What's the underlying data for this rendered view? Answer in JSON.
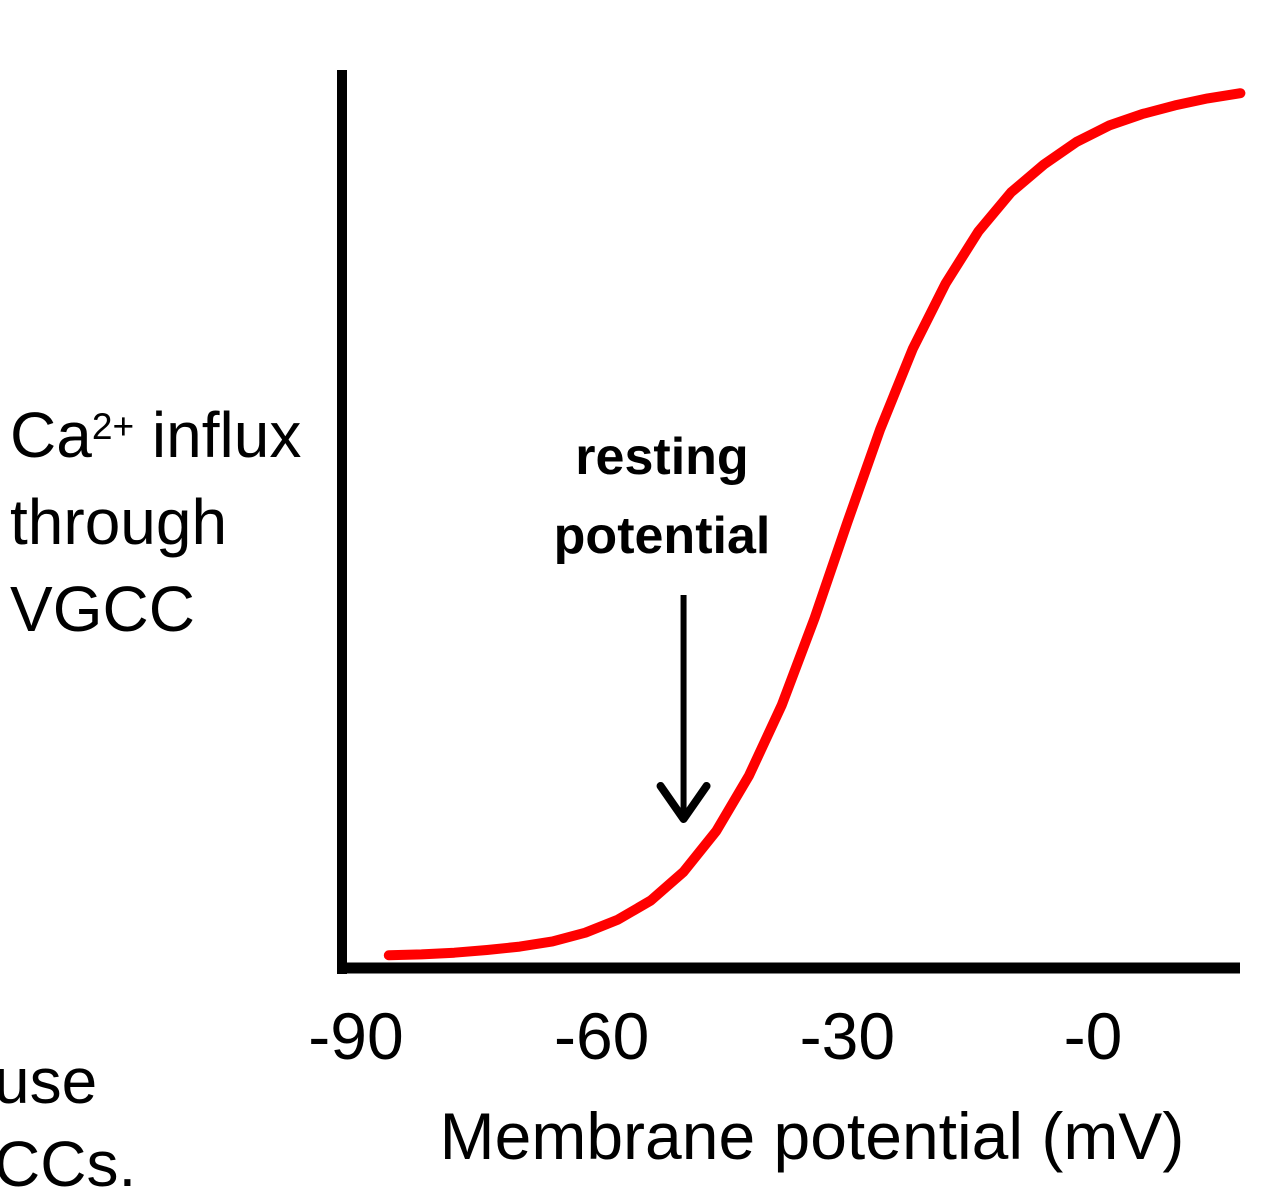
{
  "page": {
    "background": "#ffffff",
    "text_color": "#000000"
  },
  "y_axis_label": {
    "base": "Ca",
    "superscript": "2+",
    "rest": " influx",
    "line2": "through",
    "line3": "VGCC"
  },
  "annotation": {
    "line1": "resting",
    "line2": "potential"
  },
  "x_axis_label": "Membrane potential (mV)",
  "corner_fragments": {
    "line1": "use",
    "line2": "CCs."
  },
  "chart_data": {
    "type": "line",
    "title": "",
    "xlabel": "Membrane potential (mV)",
    "ylabel": "Ca2+ influx through VGCC",
    "curve_color": "#ff0000",
    "axis_color": "#000000",
    "grid": false,
    "legend": false,
    "x_range_mV": [
      -91,
      18
    ],
    "y_axis_note": "relative Ca2+ influx, unlabeled scale 0 to max",
    "x_ticks": [
      {
        "value": -90,
        "label": "-90"
      },
      {
        "value": -60,
        "label": "-60"
      },
      {
        "value": -30,
        "label": "-30"
      },
      {
        "value": 0,
        "label": "-0"
      }
    ],
    "sigmoid": {
      "v_half_mV": -30,
      "slope_factor_mV": 9
    },
    "annotation": {
      "text": "resting potential",
      "arrow_at_mV": -50
    },
    "points": [
      [
        -86,
        0.002
      ],
      [
        -82,
        0.003
      ],
      [
        -78,
        0.005
      ],
      [
        -74,
        0.008
      ],
      [
        -70,
        0.012
      ],
      [
        -66,
        0.018
      ],
      [
        -62,
        0.028
      ],
      [
        -58,
        0.043
      ],
      [
        -54,
        0.065
      ],
      [
        -50,
        0.098
      ],
      [
        -46,
        0.145
      ],
      [
        -42,
        0.209
      ],
      [
        -38,
        0.29
      ],
      [
        -34,
        0.39
      ],
      [
        -30,
        0.5
      ],
      [
        -26,
        0.607
      ],
      [
        -22,
        0.7
      ],
      [
        -18,
        0.775
      ],
      [
        -14,
        0.835
      ],
      [
        -10,
        0.88
      ],
      [
        -6,
        0.912
      ],
      [
        -2,
        0.938
      ],
      [
        2,
        0.957
      ],
      [
        6,
        0.97
      ],
      [
        10,
        0.98
      ],
      [
        14,
        0.988
      ],
      [
        18,
        0.994
      ]
    ]
  }
}
